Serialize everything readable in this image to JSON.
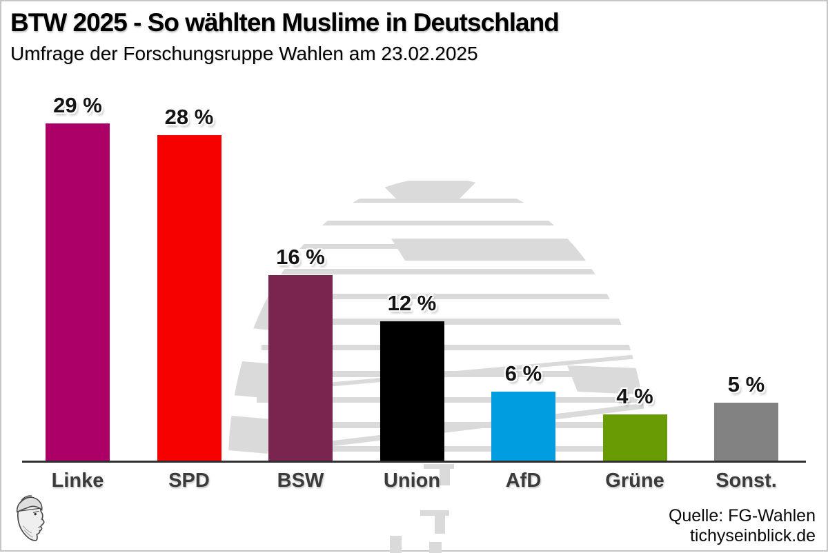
{
  "header": {
    "title": "BTW 2025 - So wählten Muslime in Deutschland",
    "subtitle": "Umfrage der Forschungsruppe Wahlen am 23.02.2025"
  },
  "chart_data": {
    "type": "bar",
    "title": "BTW 2025 - So wählten Muslime in Deutschland",
    "subtitle": "Umfrage der Forschungsruppe Wahlen am 23.02.2025",
    "categories": [
      "Linke",
      "SPD",
      "BSW",
      "Union",
      "AfD",
      "Grüne",
      "Sonst."
    ],
    "values": [
      29,
      28,
      16,
      12,
      6,
      4,
      5
    ],
    "value_labels": [
      "29 %",
      "28 %",
      "16 %",
      "12 %",
      "6 %",
      "4 %",
      "5 %"
    ],
    "bar_colors": [
      "#AD0067",
      "#F70000",
      "#7A2550",
      "#000000",
      "#009EE1",
      "#689C03",
      "#828282"
    ],
    "unit": "%",
    "ylim": [
      0,
      30
    ],
    "grid": false,
    "legend": "none",
    "orientation": "vertical"
  },
  "background": {
    "watermark": "reichstag-dome",
    "watermark_color": "#DADADA"
  },
  "footer": {
    "source_line1": "Quelle: FG-Wahlen",
    "source_line2": "tichyseinblick.de",
    "logo": "tichys-einblick-hermes-head"
  }
}
